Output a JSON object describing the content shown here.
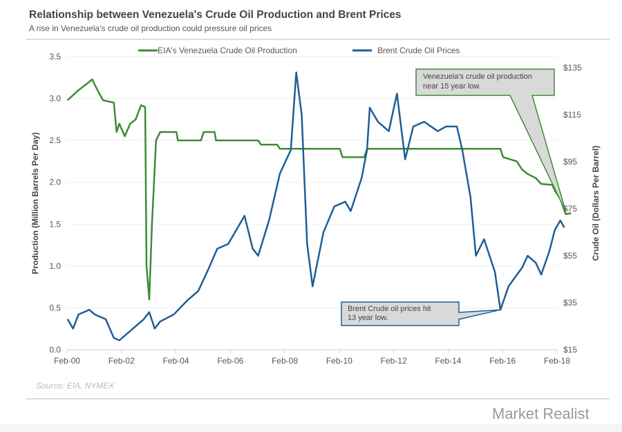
{
  "header": {
    "title": "Relationship between Venezuela's Crude Oil Production and Brent Prices",
    "subtitle": "A rise in Venezuela's  crude oil production could pressure oil prices"
  },
  "footer": {
    "source": "Source: EIA, NYMEX",
    "brand": "Market Realist"
  },
  "colors": {
    "production": "#3f8a36",
    "brent": "#1f5d96"
  },
  "chart_data": {
    "type": "line",
    "title": "Relationship between Venezuela's Crude Oil Production and Brent Prices",
    "ylabel": "Production (Million Barrels Per Day)",
    "y2label": "Crude Oil (Dollars Per Barrel)",
    "x_ticks": [
      "Feb-00",
      "Feb-02",
      "Feb-04",
      "Feb-06",
      "Feb-08",
      "Feb-10",
      "Feb-12",
      "Feb-14",
      "Feb-16",
      "Feb-18"
    ],
    "y_ticks": [
      "0.0",
      "0.5",
      "1.0",
      "1.5",
      "2.0",
      "2.5",
      "3.0",
      "3.5"
    ],
    "y2_ticks": [
      "$15",
      "$35",
      "$55",
      "$75",
      "$95",
      "$115",
      "$135"
    ],
    "ylim": [
      0,
      3.5
    ],
    "y2lim": [
      15,
      139.7
    ],
    "xlim": [
      2000.08,
      2018.08
    ],
    "legend_position": "top",
    "series": [
      {
        "name": "EIA's Venezuela Crude Oil Production",
        "axis": "left",
        "points": [
          [
            2000.1,
            2.98
          ],
          [
            2000.5,
            3.1
          ],
          [
            2000.9,
            3.2
          ],
          [
            2001.0,
            3.23
          ],
          [
            2001.2,
            3.1
          ],
          [
            2001.4,
            2.98
          ],
          [
            2001.8,
            2.95
          ],
          [
            2001.9,
            2.6
          ],
          [
            2002.0,
            2.7
          ],
          [
            2002.2,
            2.55
          ],
          [
            2002.4,
            2.7
          ],
          [
            2002.6,
            2.75
          ],
          [
            2002.8,
            2.92
          ],
          [
            2002.95,
            2.9
          ],
          [
            2003.0,
            1.0
          ],
          [
            2003.1,
            0.6
          ],
          [
            2003.2,
            1.5
          ],
          [
            2003.35,
            2.5
          ],
          [
            2003.5,
            2.6
          ],
          [
            2004.1,
            2.6
          ],
          [
            2004.15,
            2.5
          ],
          [
            2005.0,
            2.5
          ],
          [
            2005.1,
            2.6
          ],
          [
            2005.5,
            2.6
          ],
          [
            2005.55,
            2.5
          ],
          [
            2007.1,
            2.5
          ],
          [
            2007.2,
            2.45
          ],
          [
            2007.8,
            2.45
          ],
          [
            2007.9,
            2.4
          ],
          [
            2010.1,
            2.4
          ],
          [
            2010.2,
            2.3
          ],
          [
            2011.0,
            2.3
          ],
          [
            2011.1,
            2.4
          ],
          [
            2016.0,
            2.4
          ],
          [
            2016.1,
            2.3
          ],
          [
            2016.6,
            2.25
          ],
          [
            2016.8,
            2.15
          ],
          [
            2017.0,
            2.1
          ],
          [
            2017.3,
            2.05
          ],
          [
            2017.5,
            1.98
          ],
          [
            2017.9,
            1.97
          ],
          [
            2018.0,
            1.9
          ],
          [
            2018.2,
            1.8
          ],
          [
            2018.4,
            1.62
          ],
          [
            2018.6,
            1.63
          ]
        ]
      },
      {
        "name": "Brent Crude Oil Prices",
        "axis": "right",
        "points": [
          [
            2000.1,
            28
          ],
          [
            2000.3,
            24
          ],
          [
            2000.5,
            30
          ],
          [
            2000.9,
            32
          ],
          [
            2001.1,
            30
          ],
          [
            2001.5,
            28
          ],
          [
            2001.8,
            20
          ],
          [
            2002.0,
            19
          ],
          [
            2002.5,
            24
          ],
          [
            2002.9,
            28
          ],
          [
            2003.1,
            31
          ],
          [
            2003.3,
            24
          ],
          [
            2003.5,
            27
          ],
          [
            2004.0,
            30
          ],
          [
            2004.5,
            36
          ],
          [
            2004.9,
            40
          ],
          [
            2005.3,
            50
          ],
          [
            2005.6,
            58
          ],
          [
            2006.0,
            60
          ],
          [
            2006.6,
            72
          ],
          [
            2006.9,
            58
          ],
          [
            2007.1,
            55
          ],
          [
            2007.5,
            70
          ],
          [
            2007.9,
            90
          ],
          [
            2008.3,
            100
          ],
          [
            2008.5,
            133
          ],
          [
            2008.7,
            115
          ],
          [
            2008.9,
            60
          ],
          [
            2009.1,
            42
          ],
          [
            2009.5,
            65
          ],
          [
            2009.9,
            76
          ],
          [
            2010.3,
            78
          ],
          [
            2010.5,
            74
          ],
          [
            2010.9,
            88
          ],
          [
            2011.1,
            100
          ],
          [
            2011.2,
            118
          ],
          [
            2011.5,
            112
          ],
          [
            2011.9,
            108
          ],
          [
            2012.2,
            124
          ],
          [
            2012.5,
            96
          ],
          [
            2012.8,
            110
          ],
          [
            2013.2,
            112
          ],
          [
            2013.7,
            108
          ],
          [
            2014.0,
            110
          ],
          [
            2014.4,
            110
          ],
          [
            2014.6,
            100
          ],
          [
            2014.9,
            80
          ],
          [
            2015.1,
            55
          ],
          [
            2015.4,
            62
          ],
          [
            2015.8,
            48
          ],
          [
            2016.0,
            32
          ],
          [
            2016.3,
            42
          ],
          [
            2016.8,
            50
          ],
          [
            2017.0,
            55
          ],
          [
            2017.3,
            52
          ],
          [
            2017.5,
            47
          ],
          [
            2017.8,
            57
          ],
          [
            2018.0,
            66
          ],
          [
            2018.2,
            70
          ],
          [
            2018.35,
            67
          ]
        ]
      }
    ],
    "annotations": [
      {
        "text": [
          "Venezuela's crude oil production",
          "near 15 year low."
        ],
        "target": [
          2018.4,
          1.65
        ]
      },
      {
        "text": [
          "Brent Crude oil prices hit",
          "13 year low."
        ],
        "target": [
          2016.0,
          32
        ]
      }
    ]
  }
}
